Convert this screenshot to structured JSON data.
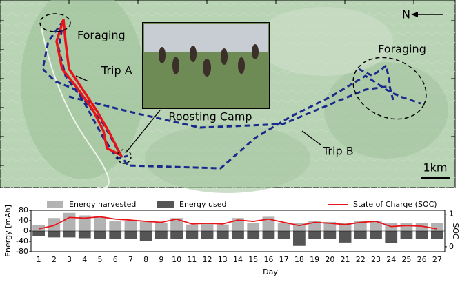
{
  "map": {
    "labels": {
      "foraging_left": "Foraging",
      "foraging_right": "Foraging",
      "trip_a": "Trip A",
      "trip_b": "Trip B",
      "roosting": "Roosting Camp",
      "north": "N",
      "scale": "1km"
    }
  },
  "chart_data": {
    "type": "bar",
    "xlabel": "Day",
    "ylabel": "Energy [mAh]",
    "y2label": "SOC",
    "categories": [
      "1",
      "2",
      "3",
      "4",
      "5",
      "6",
      "7",
      "8",
      "9",
      "10",
      "11",
      "12",
      "13",
      "14",
      "15",
      "16",
      "17",
      "18",
      "19",
      "20",
      "21",
      "22",
      "23",
      "24",
      "25",
      "26",
      "27"
    ],
    "series": [
      {
        "name": "Energy harvested",
        "color": "#b3b3b3",
        "values": [
          22,
          50,
          70,
          60,
          55,
          40,
          38,
          35,
          30,
          50,
          25,
          30,
          25,
          50,
          30,
          55,
          30,
          30,
          40,
          35,
          30,
          40,
          38,
          30,
          30,
          30,
          30
        ]
      },
      {
        "name": "Energy used",
        "color": "#555555",
        "values": [
          -20,
          -25,
          -25,
          -28,
          -30,
          -30,
          -30,
          -38,
          -30,
          -30,
          -30,
          -30,
          -30,
          -30,
          -30,
          -30,
          -30,
          -58,
          -30,
          -30,
          -45,
          -30,
          -30,
          -48,
          -30,
          -30,
          -30
        ]
      },
      {
        "name": "State of Charge (SOC)",
        "type": "line",
        "axis": "y2",
        "color": "#e8141a",
        "values": [
          0.55,
          0.65,
          0.9,
          0.88,
          0.92,
          0.85,
          0.82,
          0.78,
          0.75,
          0.85,
          0.7,
          0.72,
          0.7,
          0.82,
          0.78,
          0.85,
          0.75,
          0.65,
          0.75,
          0.72,
          0.68,
          0.75,
          0.78,
          0.62,
          0.65,
          0.63,
          0.55
        ]
      }
    ],
    "ylim": [
      -80,
      80
    ],
    "yticks": [
      -80,
      -40,
      0,
      40,
      80
    ],
    "y2lim": [
      -0.15,
      1.12
    ],
    "y2ticks": [
      0,
      1
    ]
  }
}
